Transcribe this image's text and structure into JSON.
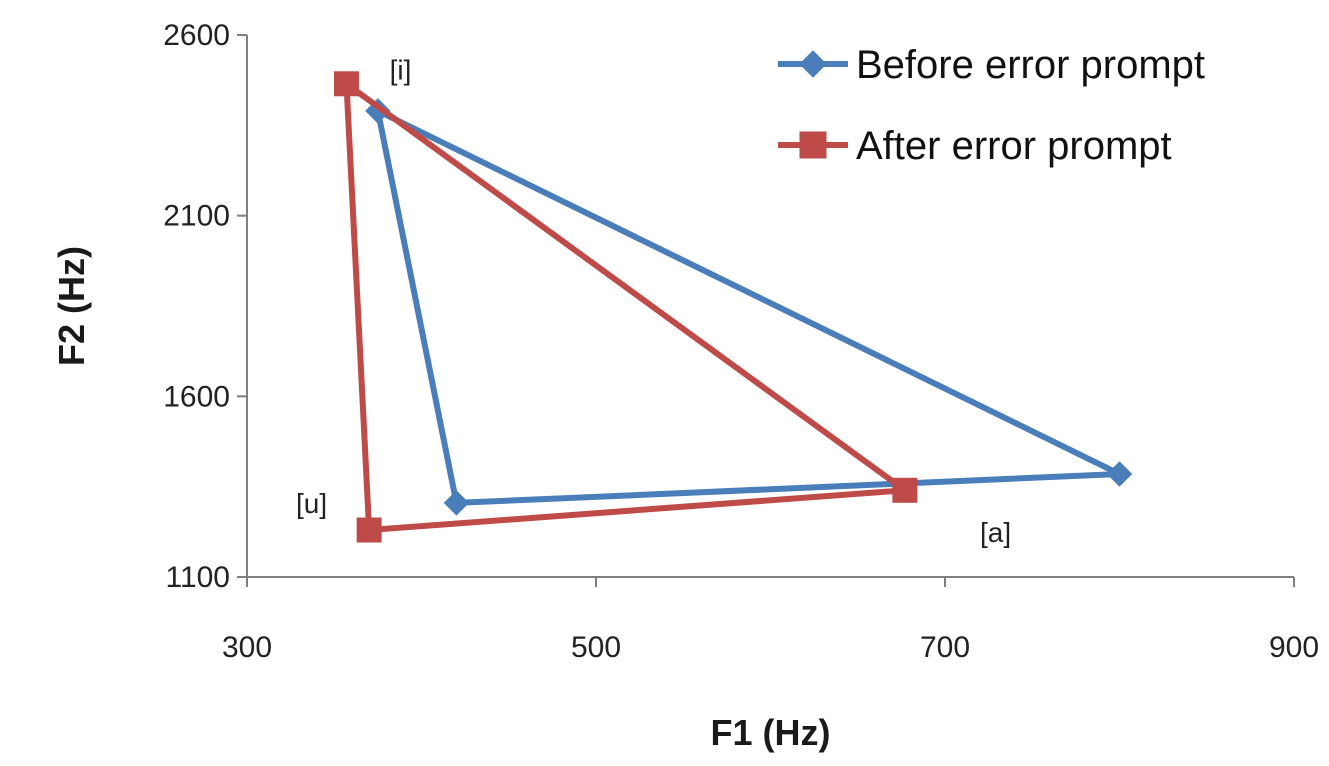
{
  "chart_data": {
    "type": "line",
    "xlabel": "F1 (Hz)",
    "ylabel": "F2 (Hz)",
    "xlim": [
      300,
      900
    ],
    "ylim": [
      1100,
      2600
    ],
    "xticks": [
      300,
      500,
      700,
      900
    ],
    "yticks": [
      1100,
      1600,
      2100,
      2600
    ],
    "grid": false,
    "legend_position": "top-right",
    "series": [
      {
        "name": "Before error prompt",
        "color": "#4a7ebb",
        "marker": "diamond",
        "points": [
          {
            "x": 375,
            "y": 2390
          },
          {
            "x": 420,
            "y": 1305
          },
          {
            "x": 800,
            "y": 1385
          },
          {
            "x": 375,
            "y": 2390
          }
        ]
      },
      {
        "name": "After error prompt",
        "color": "#be4b48",
        "marker": "square",
        "points": [
          {
            "x": 357,
            "y": 2465
          },
          {
            "x": 370,
            "y": 1230
          },
          {
            "x": 677,
            "y": 1340
          },
          {
            "x": 357,
            "y": 2465
          }
        ]
      }
    ],
    "annotations": [
      {
        "text": "[i]",
        "x": 388,
        "y": 2505
      },
      {
        "text": "[u]",
        "x": 337,
        "y": 1305
      },
      {
        "text": "[a]",
        "x": 729,
        "y": 1225
      }
    ]
  }
}
